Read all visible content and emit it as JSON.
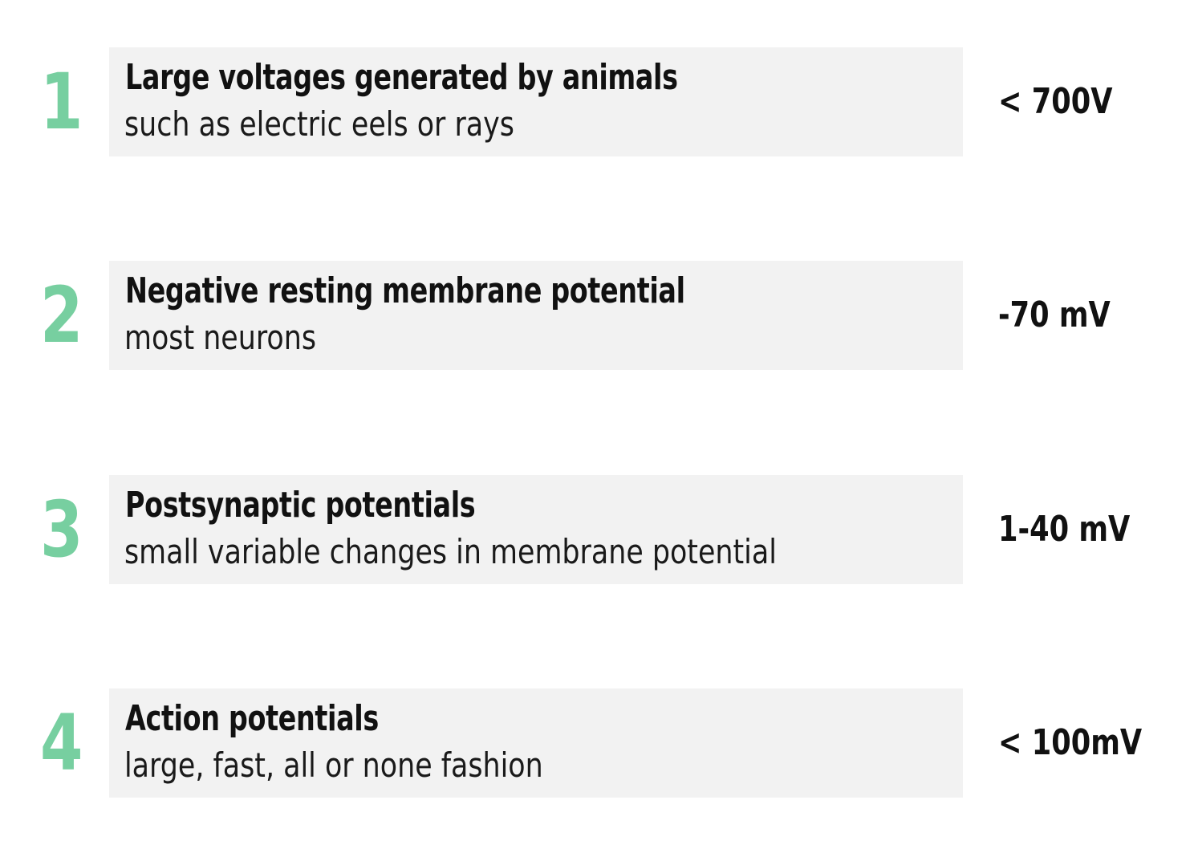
{
  "colors": {
    "accent_number": "#77cfa0",
    "box_background": "#f2f2f2",
    "text": "#111111"
  },
  "items": [
    {
      "number": "1",
      "title": "Large voltages generated by animals",
      "subtitle": "such as electric eels or rays",
      "value": "< 700V"
    },
    {
      "number": "2",
      "title": "Negative resting membrane potential",
      "subtitle": "most neurons",
      "value": "-70 mV"
    },
    {
      "number": "3",
      "title": "Postsynaptic potentials",
      "subtitle": "small variable changes in membrane potential",
      "value": "1-40 mV"
    },
    {
      "number": "4",
      "title": "Action potentials",
      "subtitle": "large, fast, all or none fashion",
      "value": "< 100mV"
    }
  ]
}
